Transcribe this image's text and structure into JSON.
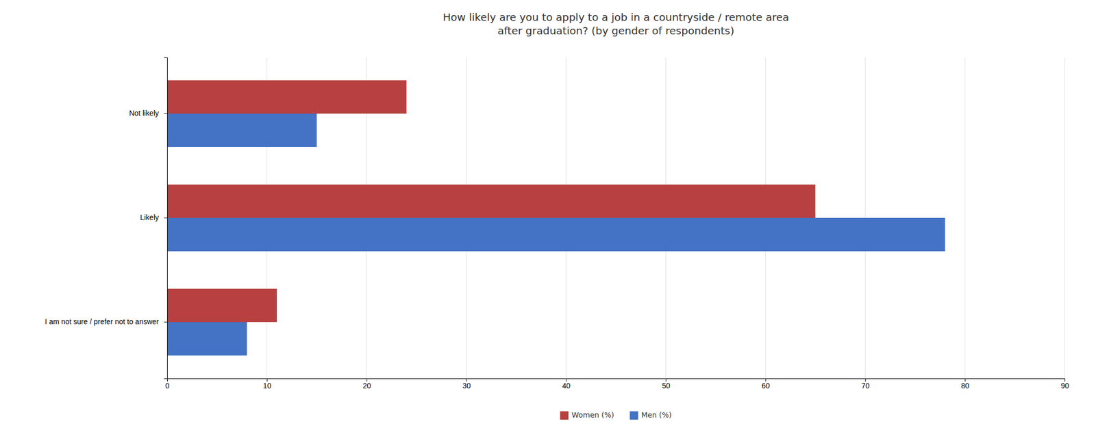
{
  "chart_data": {
    "type": "bar",
    "orientation": "horizontal",
    "title": "How likely are you to apply to a job in a countryside / remote area\nafter graduation? (by gender of respondents)",
    "categories": [
      "I am not sure / prefer not to answer",
      "Likely",
      "Not likely"
    ],
    "series": [
      {
        "name": "Women (%)",
        "color": "#b84040",
        "values": [
          11,
          65,
          24
        ]
      },
      {
        "name": "Men (%)",
        "color": "#4472c4",
        "values": [
          8,
          78,
          15
        ]
      }
    ],
    "xlim": [
      0,
      90
    ],
    "xticks": [
      0,
      10,
      20,
      30,
      40,
      50,
      60,
      70,
      80,
      90
    ],
    "grid": true,
    "legend": "bottom"
  }
}
